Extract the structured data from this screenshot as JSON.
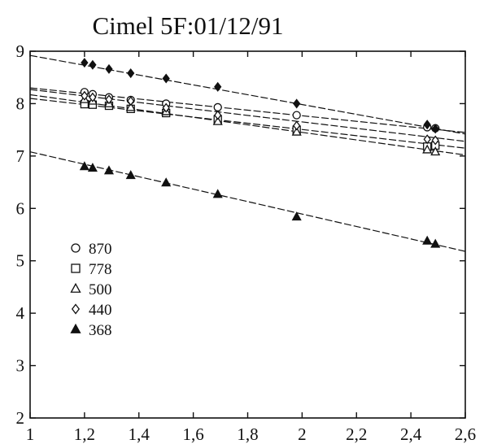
{
  "chart_data": {
    "type": "scatter",
    "title": "Cimel 5F:01/12/91",
    "xlabel": "",
    "ylabel": "",
    "xlim": [
      1,
      2.6
    ],
    "ylim": [
      2,
      9
    ],
    "x_ticks": [
      1,
      1.2,
      1.4,
      1.6,
      1.8,
      2,
      2.2,
      2.4,
      2.6
    ],
    "x_tick_labels": [
      "1",
      "1,2",
      "1,4",
      "1,6",
      "1,8",
      "2",
      "2,2",
      "2,4",
      "2,6"
    ],
    "y_ticks": [
      2,
      3,
      4,
      5,
      6,
      7,
      8,
      9
    ],
    "y_tick_labels": [
      "2",
      "3",
      "4",
      "5",
      "6",
      "7",
      "8",
      "9"
    ],
    "grid": false,
    "legend_position": "left-middle",
    "series": [
      {
        "name": "870",
        "marker": "open-circle",
        "fit": [
          8.3,
          7.45
        ],
        "points": [
          [
            1.2,
            8.22
          ],
          [
            1.23,
            8.18
          ],
          [
            1.29,
            8.12
          ],
          [
            1.37,
            8.07
          ],
          [
            1.5,
            8.0
          ],
          [
            1.69,
            7.93
          ],
          [
            1.98,
            7.78
          ],
          [
            2.46,
            7.55
          ],
          [
            2.49,
            7.53
          ]
        ]
      },
      {
        "name": "778",
        "marker": "open-square",
        "fit": [
          8.1,
          7.15
        ],
        "points": [
          [
            1.2,
            7.99
          ],
          [
            1.23,
            7.98
          ],
          [
            1.29,
            7.96
          ],
          [
            1.37,
            7.9
          ],
          [
            1.5,
            7.82
          ],
          [
            1.69,
            7.7
          ],
          [
            1.98,
            7.5
          ],
          [
            2.46,
            7.18
          ],
          [
            2.49,
            7.2
          ]
        ]
      },
      {
        "name": "500",
        "marker": "open-triangle",
        "fit": [
          8.17,
          7.02
        ],
        "points": [
          [
            1.2,
            8.08
          ],
          [
            1.23,
            8.05
          ],
          [
            1.29,
            8.0
          ],
          [
            1.37,
            7.93
          ],
          [
            1.5,
            7.85
          ],
          [
            1.69,
            7.66
          ],
          [
            1.98,
            7.46
          ],
          [
            2.46,
            7.12
          ],
          [
            2.49,
            7.08
          ]
        ]
      },
      {
        "name": "440",
        "marker": "open-diamond",
        "fit": [
          8.27,
          7.28
        ],
        "points": [
          [
            1.2,
            8.15
          ],
          [
            1.23,
            8.12
          ],
          [
            1.29,
            8.08
          ],
          [
            1.37,
            8.05
          ],
          [
            1.5,
            7.92
          ],
          [
            1.69,
            7.78
          ],
          [
            1.98,
            7.58
          ],
          [
            2.46,
            7.32
          ],
          [
            2.49,
            7.3
          ]
        ]
      },
      {
        "name": "368",
        "marker": "filled-triangle",
        "fit": [
          7.08,
          5.18
        ],
        "points": [
          [
            1.2,
            6.8
          ],
          [
            1.23,
            6.77
          ],
          [
            1.29,
            6.72
          ],
          [
            1.37,
            6.63
          ],
          [
            1.5,
            6.49
          ],
          [
            1.69,
            6.27
          ],
          [
            1.98,
            5.84
          ],
          [
            2.46,
            5.38
          ],
          [
            2.49,
            5.32
          ]
        ]
      },
      {
        "name": "",
        "marker": "filled-diamond",
        "fit": [
          8.92,
          7.42
        ],
        "points": [
          [
            1.2,
            8.78
          ],
          [
            1.23,
            8.74
          ],
          [
            1.29,
            8.66
          ],
          [
            1.37,
            8.58
          ],
          [
            1.5,
            8.48
          ],
          [
            1.69,
            8.32
          ],
          [
            1.98,
            8.0
          ],
          [
            2.46,
            7.6
          ],
          [
            2.49,
            7.52
          ]
        ]
      }
    ],
    "colors": {
      "ink": "#111111",
      "background": "#ffffff"
    }
  }
}
